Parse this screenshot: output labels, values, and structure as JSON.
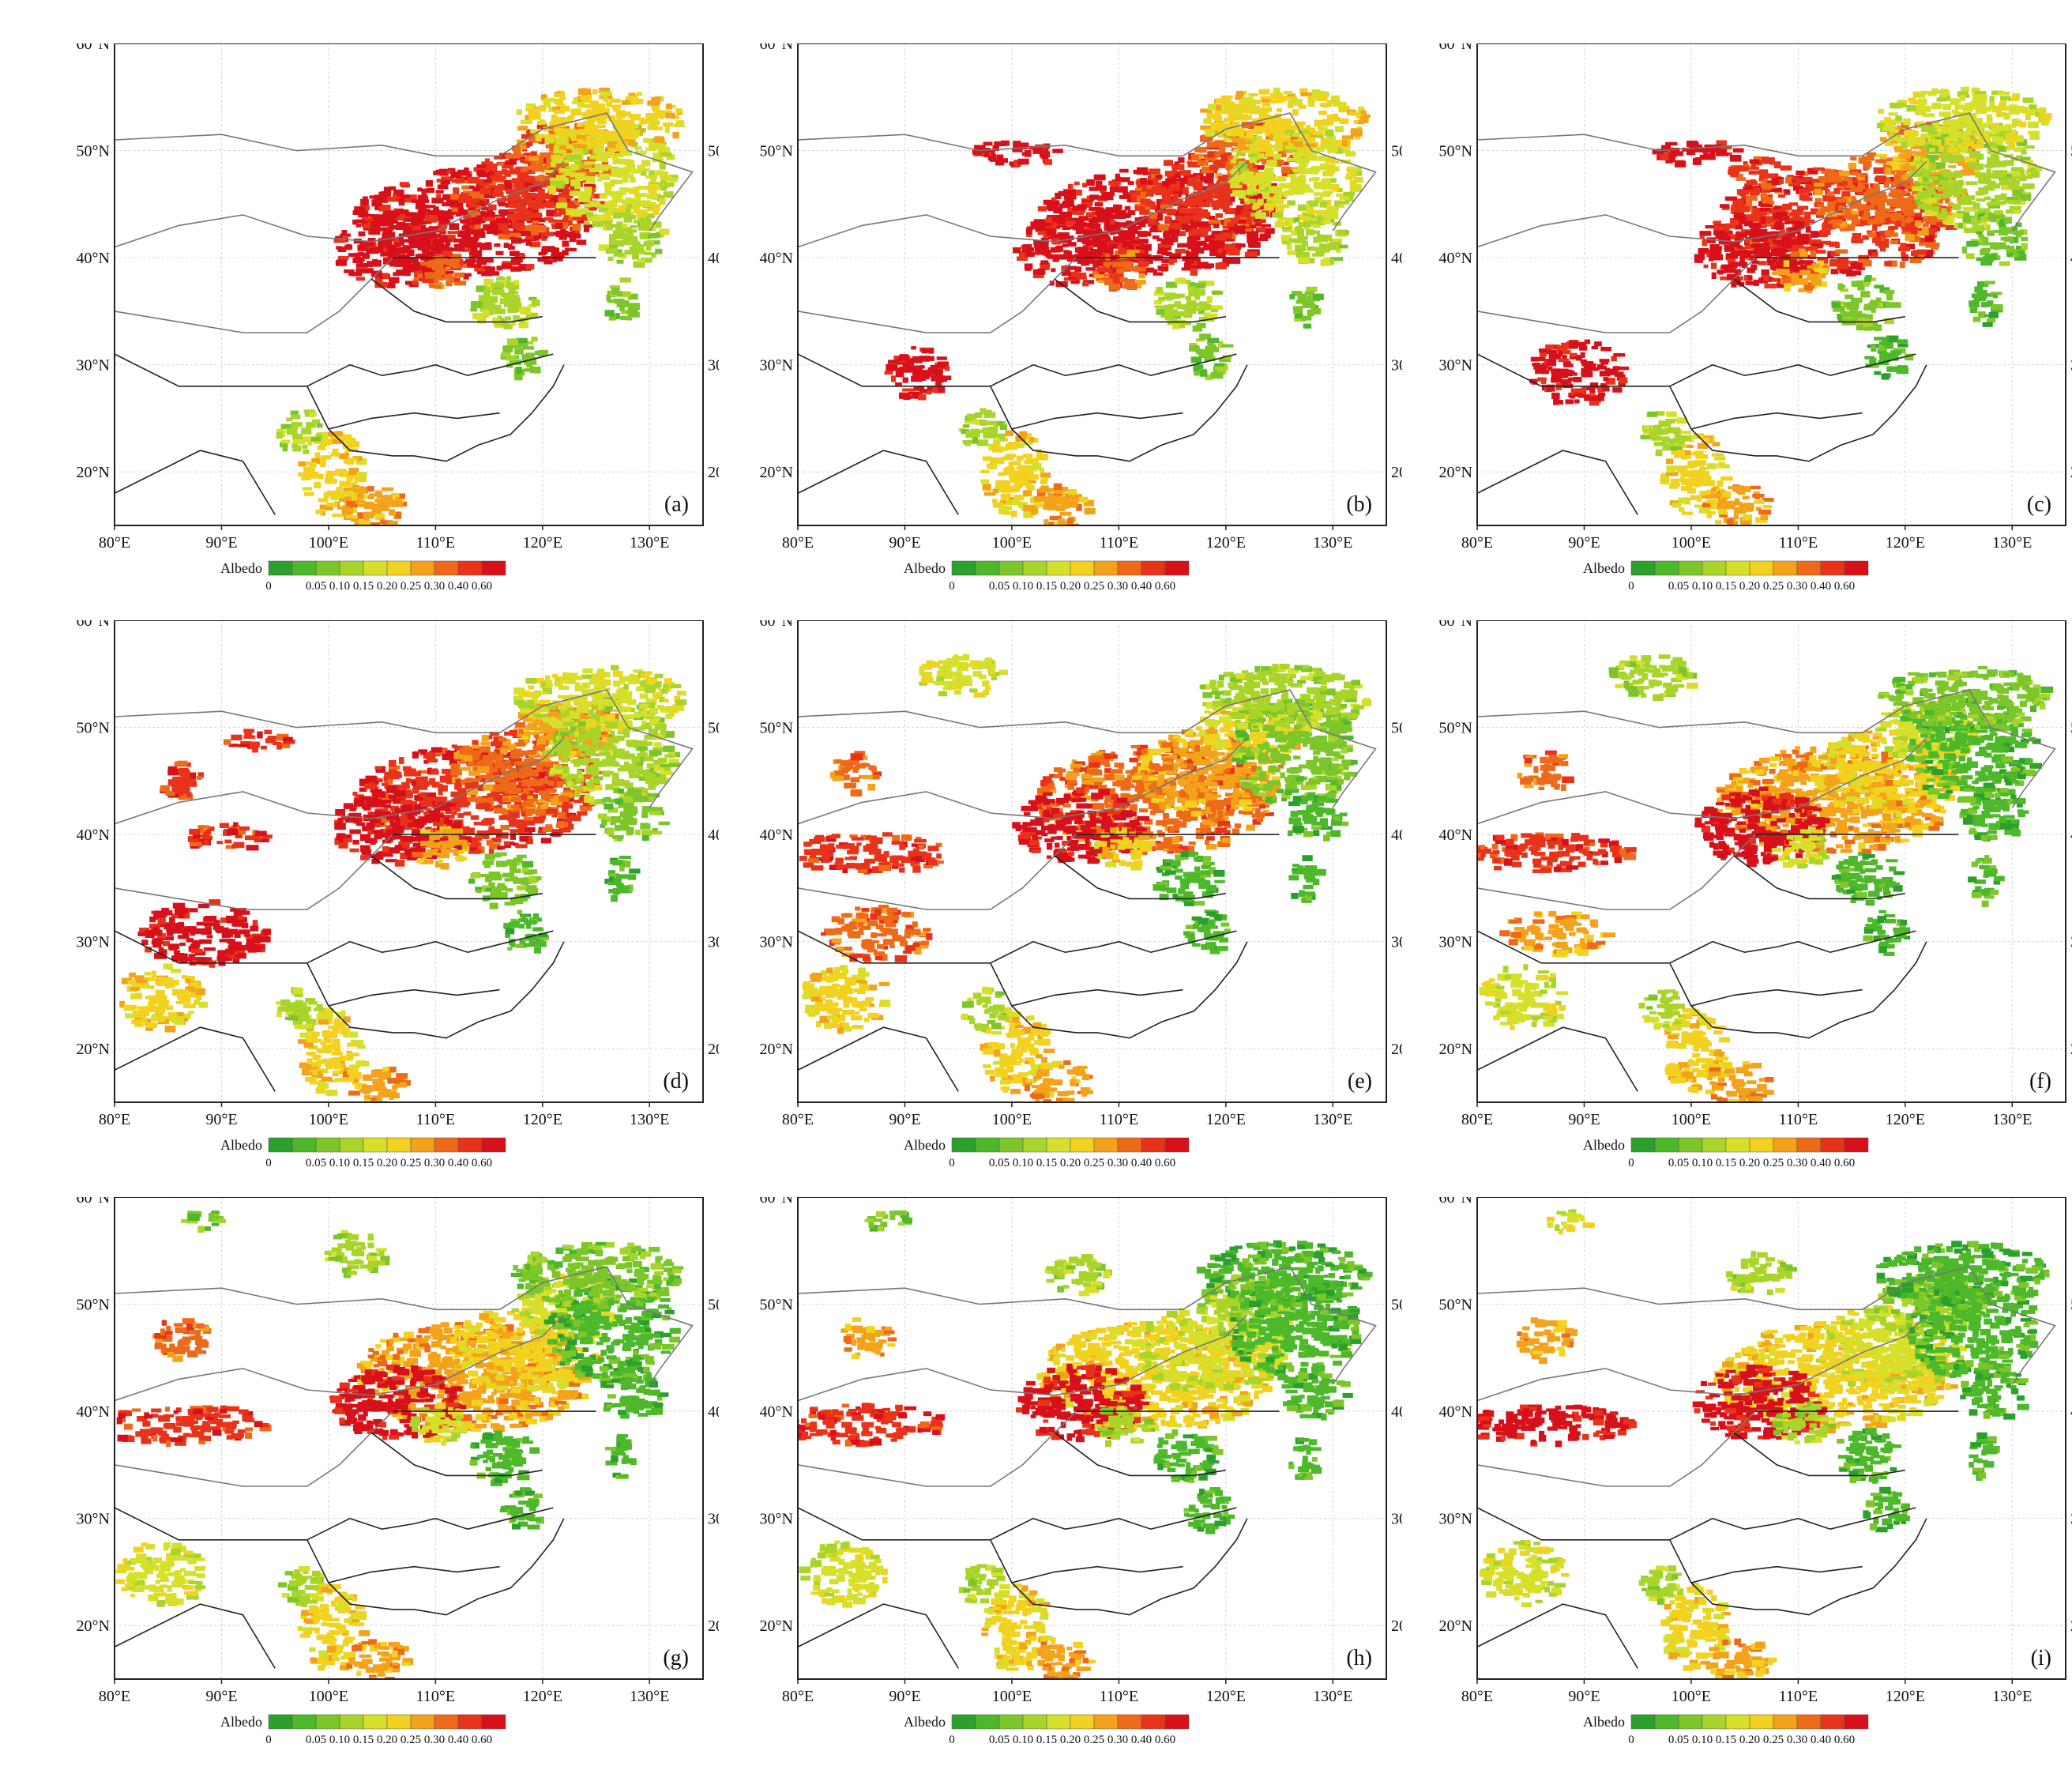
{
  "figure": {
    "panels": [
      {
        "label": "(a)",
        "variant": 0
      },
      {
        "label": "(b)",
        "variant": 1
      },
      {
        "label": "(c)",
        "variant": 2
      },
      {
        "label": "(d)",
        "variant": 3
      },
      {
        "label": "(e)",
        "variant": 4
      },
      {
        "label": "(f)",
        "variant": 5
      },
      {
        "label": "(g)",
        "variant": 6
      },
      {
        "label": "(h)",
        "variant": 7
      },
      {
        "label": "(i)",
        "variant": 8
      }
    ],
    "lon_ticks": [
      "80°E",
      "90°E",
      "100°E",
      "110°E",
      "120°E",
      "130°E"
    ],
    "lat_ticks": [
      "60°N",
      "50°N",
      "40°N",
      "30°N",
      "20°N"
    ],
    "lon_values": [
      80,
      90,
      100,
      110,
      120,
      130
    ],
    "lat_values": [
      60,
      50,
      40,
      30,
      20
    ],
    "lon_range": [
      80,
      135
    ],
    "lat_range": [
      15,
      60
    ],
    "colorbar": {
      "title": "Albedo",
      "ticks": [
        "0",
        "0.05",
        "0.10",
        "0.15",
        "0.20",
        "0.25",
        "0.30",
        "0.40",
        "0.60"
      ],
      "colors": [
        "#2ca02c",
        "#4cb82a",
        "#7cc62a",
        "#a9d42a",
        "#d6e02a",
        "#f2d21e",
        "#f3a21a",
        "#ee6a18",
        "#e8321a",
        "#d8101a"
      ]
    }
  }
}
